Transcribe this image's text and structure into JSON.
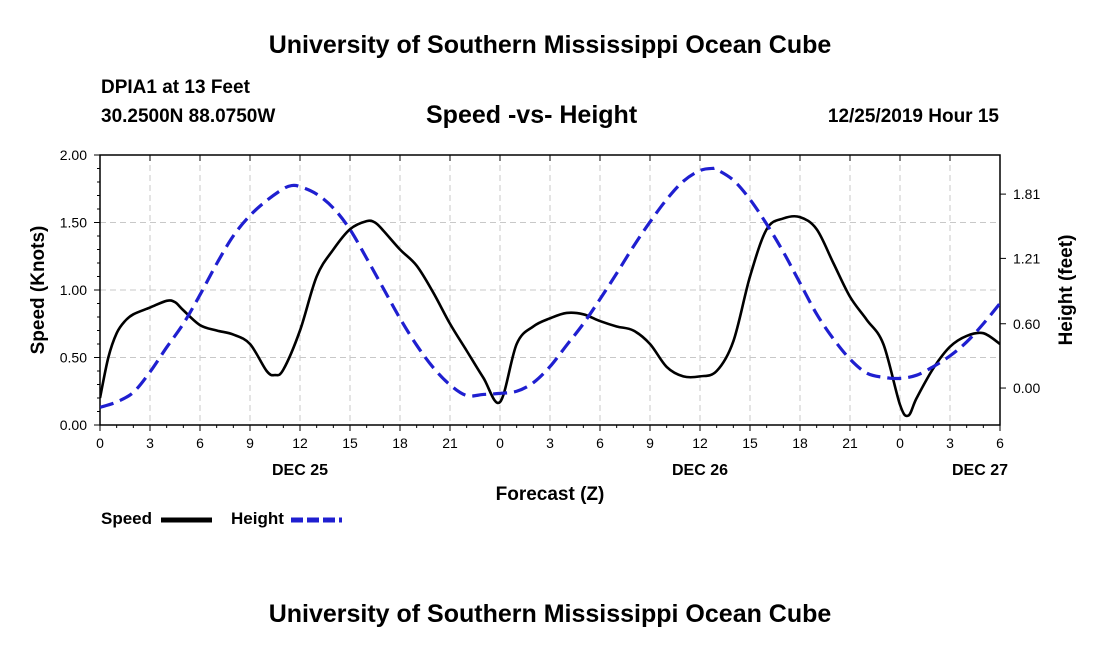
{
  "page": {
    "title_top": "University of Southern Mississippi Ocean Cube",
    "title_bottom": "University of Southern Mississippi Ocean Cube",
    "station": "DPIA1 at 13 Feet",
    "coords": "30.2500N 88.0750W",
    "datetime": "12/25/2019 Hour 15"
  },
  "chart_data": {
    "type": "line",
    "title": "Speed -vs- Height",
    "xlabel": "Forecast (Z)",
    "ylabel": "Speed (Knots)",
    "y2label": "Height (feet)",
    "xlim": [
      0,
      54
    ],
    "ylim": [
      0,
      2
    ],
    "y2lim": [
      -0.345,
      2.175
    ],
    "grid": true,
    "x_ticks": [
      0,
      3,
      6,
      9,
      12,
      15,
      18,
      21,
      24,
      27,
      30,
      33,
      36,
      39,
      42,
      45,
      48,
      51,
      54
    ],
    "x_tick_labels": [
      "0",
      "3",
      "6",
      "9",
      "12",
      "15",
      "18",
      "21",
      "0",
      "3",
      "6",
      "9",
      "12",
      "15",
      "18",
      "21",
      "0",
      "3",
      "6"
    ],
    "y_ticks": [
      0,
      0.5,
      1,
      1.5,
      2
    ],
    "y_tick_labels": [
      "0.00",
      "0.50",
      "1.00",
      "1.50",
      "2.00"
    ],
    "y2_ticks": [
      0,
      0.6,
      1.21,
      1.81
    ],
    "y2_tick_labels": [
      "0.00",
      "0.60",
      "1.21",
      "1.81"
    ],
    "date_labels": [
      {
        "x": 12,
        "label": "DEC 25"
      },
      {
        "x": 36,
        "label": "DEC 26"
      },
      {
        "x": 52.8,
        "label": "DEC 27"
      }
    ],
    "legend": {
      "position": "bottom-left"
    },
    "series": [
      {
        "name": "Speed",
        "axis": "left",
        "color": "#000000",
        "dash": false,
        "x": [
          0,
          0.5,
          1,
          1.5,
          2,
          3,
          4,
          4.5,
          5,
          6,
          7,
          8,
          9,
          10,
          10.5,
          11,
          12,
          13,
          14,
          15,
          16,
          16.5,
          17,
          18,
          19,
          20,
          21,
          22,
          23,
          24,
          25,
          26,
          27,
          28,
          29,
          30,
          31,
          32,
          33,
          34,
          35,
          36,
          37,
          38,
          39,
          40,
          41,
          42,
          43,
          44,
          45,
          46,
          47,
          48,
          48.5,
          49,
          50,
          51,
          52,
          53,
          54
        ],
        "values": [
          0.2,
          0.5,
          0.68,
          0.77,
          0.82,
          0.87,
          0.92,
          0.91,
          0.85,
          0.74,
          0.7,
          0.67,
          0.6,
          0.4,
          0.37,
          0.41,
          0.7,
          1.1,
          1.3,
          1.45,
          1.51,
          1.5,
          1.44,
          1.3,
          1.18,
          0.98,
          0.75,
          0.55,
          0.35,
          0.17,
          0.6,
          0.73,
          0.79,
          0.83,
          0.82,
          0.77,
          0.73,
          0.7,
          0.6,
          0.43,
          0.36,
          0.36,
          0.4,
          0.62,
          1.1,
          1.45,
          1.53,
          1.54,
          1.45,
          1.2,
          0.95,
          0.78,
          0.6,
          0.15,
          0.07,
          0.2,
          0.42,
          0.58,
          0.66,
          0.68,
          0.6
        ]
      },
      {
        "name": "Height",
        "axis": "right",
        "color": "#1f1fd0",
        "dash": true,
        "x": [
          0,
          1,
          2,
          3,
          4,
          5,
          6,
          7,
          8,
          9,
          10,
          11,
          11.5,
          12,
          13,
          14,
          15,
          16,
          17,
          18,
          19,
          20,
          21,
          22,
          23,
          24,
          25,
          26,
          27,
          28,
          29,
          30,
          31,
          32,
          33,
          34,
          35,
          36,
          36.8,
          37,
          38,
          39,
          40,
          41,
          42,
          43,
          44,
          45,
          46,
          47,
          48,
          49,
          50,
          51,
          52,
          53,
          54
        ],
        "values": [
          -0.18,
          -0.13,
          -0.04,
          0.15,
          0.38,
          0.6,
          0.87,
          1.16,
          1.42,
          1.61,
          1.75,
          1.86,
          1.89,
          1.88,
          1.81,
          1.68,
          1.48,
          1.21,
          0.93,
          0.65,
          0.4,
          0.19,
          0.03,
          -0.07,
          -0.06,
          -0.05,
          -0.03,
          0.05,
          0.2,
          0.4,
          0.6,
          0.83,
          1.07,
          1.32,
          1.55,
          1.76,
          1.93,
          2.03,
          2.05,
          2.04,
          1.94,
          1.76,
          1.53,
          1.27,
          0.98,
          0.69,
          0.46,
          0.27,
          0.14,
          0.1,
          0.09,
          0.12,
          0.2,
          0.3,
          0.43,
          0.6,
          0.79
        ]
      }
    ]
  }
}
